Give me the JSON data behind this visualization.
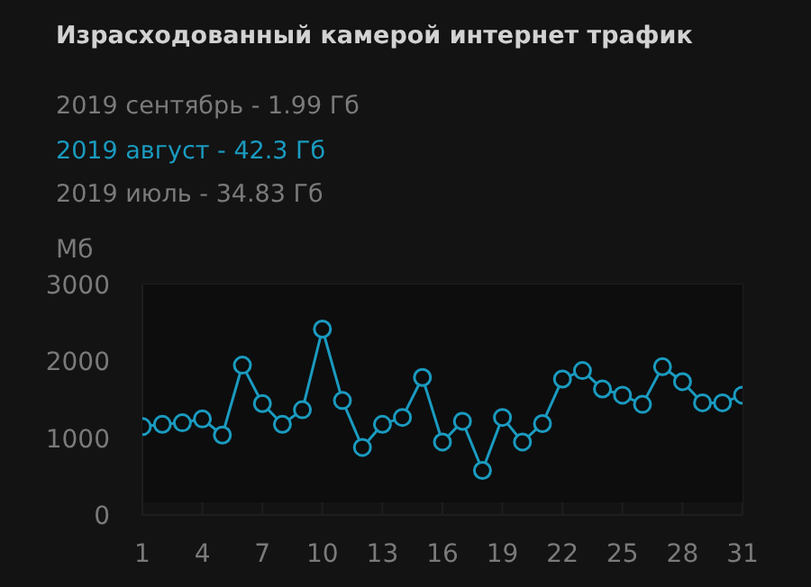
{
  "chart_data": {
    "type": "line",
    "title": "Израсходованный камерой интернет трафик",
    "annotations": [
      "2019 сентябрь - 1.99 Гб",
      "2019 июль - 34.83 Гб"
    ],
    "ylabel": "Мб",
    "x": [
      1,
      2,
      3,
      4,
      5,
      6,
      7,
      8,
      9,
      10,
      11,
      12,
      13,
      14,
      15,
      16,
      17,
      18,
      19,
      20,
      21,
      22,
      23,
      24,
      25,
      26,
      27,
      28,
      29,
      30,
      31
    ],
    "series": [
      {
        "name": "2019 август - 42.3 Гб",
        "color": "#1a9bc0",
        "values": [
          1150,
          1180,
          1200,
          1250,
          1040,
          1950,
          1450,
          1180,
          1370,
          2420,
          1490,
          880,
          1180,
          1270,
          1790,
          950,
          1220,
          580,
          1270,
          950,
          1190,
          1770,
          1880,
          1640,
          1560,
          1440,
          1930,
          1735,
          1460,
          1460,
          1560
        ]
      }
    ],
    "xlim": [
      1,
      31
    ],
    "xticks": [
      1,
      4,
      7,
      10,
      13,
      16,
      19,
      22,
      25,
      28,
      31
    ],
    "ylim": [
      0,
      3000
    ],
    "yticks": [
      0,
      1000,
      2000,
      3000
    ],
    "grid": true,
    "marker": "circle",
    "line_style": "solid"
  }
}
